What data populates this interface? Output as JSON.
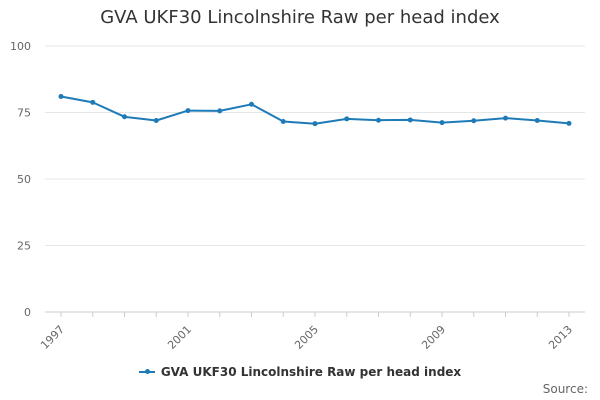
{
  "colors": {
    "series": "#1f7ab8",
    "grid": "#e6e6e6",
    "axis": "#cccccc",
    "text": "#333333",
    "muted": "#666666"
  },
  "footer": {
    "source_label": "Source:"
  },
  "chart_data": {
    "type": "line",
    "title": "GVA UKF30 Lincolnshire Raw per head index",
    "xlabel": "",
    "ylabel": "",
    "x": [
      1997,
      1998,
      1999,
      2000,
      2001,
      2002,
      2003,
      2004,
      2005,
      2006,
      2007,
      2008,
      2009,
      2010,
      2011,
      2012,
      2013
    ],
    "x_tick_labels": [
      "1997",
      "2001",
      "2005",
      "2009",
      "2013"
    ],
    "x_tick_values": [
      1997,
      2001,
      2005,
      2009,
      2013
    ],
    "y_ticks": [
      0,
      25,
      50,
      75,
      100
    ],
    "ylim": [
      0,
      100
    ],
    "grid": true,
    "legend": "bottom",
    "series": [
      {
        "name": "GVA UKF30 Lincolnshire Raw per head index",
        "values": [
          81.0,
          78.8,
          73.4,
          72.0,
          75.7,
          75.6,
          78.1,
          71.6,
          70.8,
          72.6,
          72.1,
          72.2,
          71.2,
          71.9,
          72.9,
          72.0,
          70.9
        ]
      }
    ]
  }
}
